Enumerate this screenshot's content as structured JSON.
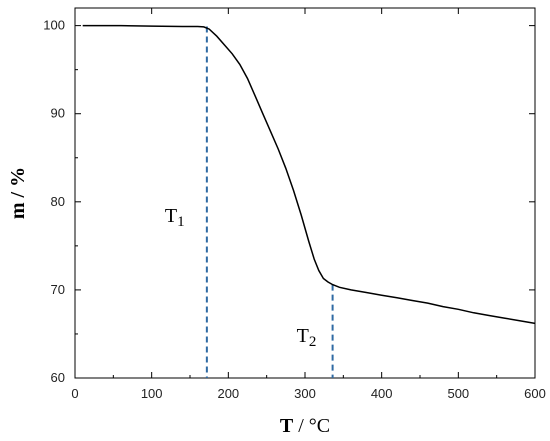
{
  "chart_data": {
    "type": "line",
    "title": "",
    "xlabel": {
      "bold": "T",
      "rest": " / °C"
    },
    "ylabel": "m / %",
    "xlim": [
      0,
      600
    ],
    "ylim": [
      60,
      102
    ],
    "x_ticks": [
      0,
      100,
      200,
      300,
      400,
      500,
      600
    ],
    "y_ticks": [
      60,
      70,
      80,
      90,
      100
    ],
    "grid": false,
    "legend": "none",
    "series": [
      {
        "color": "#000000",
        "points": [
          [
            10,
            100.0
          ],
          [
            60,
            100.0
          ],
          [
            100,
            99.95
          ],
          [
            140,
            99.9
          ],
          [
            160,
            99.9
          ],
          [
            168,
            99.85
          ],
          [
            175,
            99.6
          ],
          [
            185,
            98.8
          ],
          [
            195,
            97.8
          ],
          [
            205,
            96.8
          ],
          [
            215,
            95.6
          ],
          [
            225,
            94.0
          ],
          [
            235,
            92.0
          ],
          [
            245,
            90.0
          ],
          [
            255,
            88.0
          ],
          [
            265,
            86.0
          ],
          [
            275,
            83.8
          ],
          [
            285,
            81.3
          ],
          [
            295,
            78.5
          ],
          [
            305,
            75.5
          ],
          [
            312,
            73.5
          ],
          [
            318,
            72.2
          ],
          [
            324,
            71.3
          ],
          [
            330,
            70.9
          ],
          [
            336,
            70.6
          ],
          [
            345,
            70.3
          ],
          [
            360,
            70.0
          ],
          [
            380,
            69.7
          ],
          [
            400,
            69.4
          ],
          [
            420,
            69.1
          ],
          [
            440,
            68.8
          ],
          [
            460,
            68.5
          ],
          [
            480,
            68.1
          ],
          [
            500,
            67.8
          ],
          [
            520,
            67.4
          ],
          [
            540,
            67.1
          ],
          [
            560,
            66.8
          ],
          [
            580,
            66.5
          ],
          [
            600,
            66.2
          ]
        ]
      }
    ],
    "annotations": [
      {
        "label": "T",
        "sub": "1",
        "x": 172,
        "y_top": 99.9,
        "color": "#2f6aa3"
      },
      {
        "label": "T",
        "sub": "2",
        "x": 336,
        "y_top": 70.6,
        "color": "#2f6aa3"
      }
    ]
  }
}
